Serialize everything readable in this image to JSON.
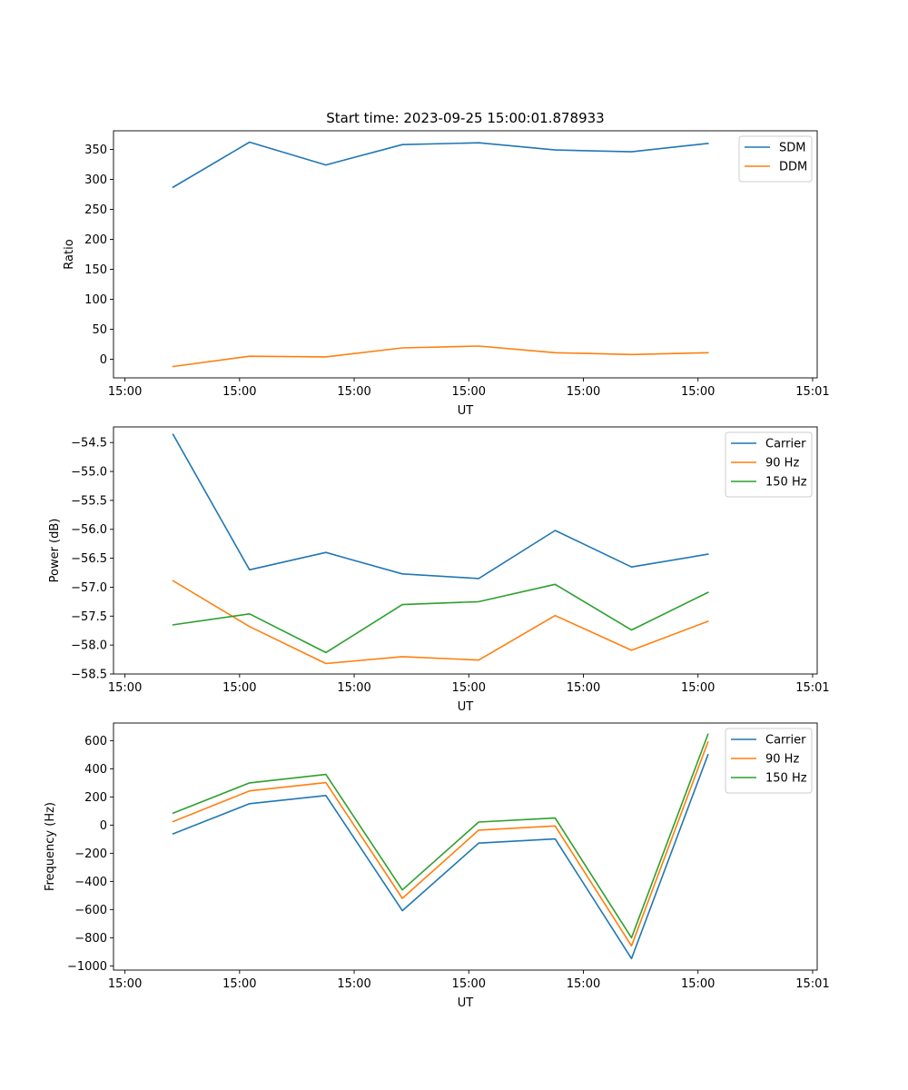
{
  "chart_data": [
    {
      "type": "line",
      "title": "Start time: 2023-09-25 15:00:01.878933",
      "xlabel": "UT",
      "ylabel": "Ratio",
      "x": [
        1,
        2,
        3,
        4,
        5,
        6,
        7,
        8
      ],
      "xlim": [
        0.22,
        9.43
      ],
      "xticks": [
        0.37,
        1.87,
        3.37,
        4.87,
        6.37,
        7.87,
        9.37
      ],
      "xtick_labels": [
        "15:00",
        "15:00",
        "15:00",
        "15:00",
        "15:00",
        "15:00",
        "15:01"
      ],
      "ylim": [
        -31,
        381
      ],
      "yticks": [
        0,
        50,
        100,
        150,
        200,
        250,
        300,
        350
      ],
      "ytick_labels": [
        "0",
        "50",
        "100",
        "150",
        "200",
        "250",
        "300",
        "350"
      ],
      "legend": "top-right",
      "series": [
        {
          "name": "SDM",
          "color": "#1f77b4",
          "values": [
            287,
            362,
            324,
            358,
            361,
            349,
            346,
            360
          ]
        },
        {
          "name": "DDM",
          "color": "#ff7f0e",
          "values": [
            -12,
            5,
            4,
            19,
            22,
            11,
            8,
            11
          ]
        }
      ]
    },
    {
      "type": "line",
      "title": "",
      "xlabel": "UT",
      "ylabel": "Power (dB)",
      "x": [
        1,
        2,
        3,
        4,
        5,
        6,
        7,
        8
      ],
      "xlim": [
        0.22,
        9.43
      ],
      "xticks": [
        0.37,
        1.87,
        3.37,
        4.87,
        6.37,
        7.87,
        9.37
      ],
      "xtick_labels": [
        "15:00",
        "15:00",
        "15:00",
        "15:00",
        "15:00",
        "15:00",
        "15:01"
      ],
      "ylim": [
        -58.5,
        -54.23
      ],
      "yticks": [
        -58.5,
        -58.0,
        -57.5,
        -57.0,
        -56.5,
        -56.0,
        -55.5,
        -55.0,
        -54.5
      ],
      "ytick_labels": [
        "−58.5",
        "−58.0",
        "−57.5",
        "−57.0",
        "−56.5",
        "−56.0",
        "−55.5",
        "−55.0",
        "−54.5"
      ],
      "legend": "top-right",
      "series": [
        {
          "name": "Carrier",
          "color": "#1f77b4",
          "values": [
            -54.36,
            -56.7,
            -56.4,
            -56.77,
            -56.85,
            -56.02,
            -56.65,
            -56.43
          ]
        },
        {
          "name": "90 Hz",
          "color": "#ff7f0e",
          "values": [
            -56.89,
            -57.68,
            -58.32,
            -58.2,
            -58.26,
            -57.49,
            -58.09,
            -57.59
          ]
        },
        {
          "name": "150 Hz",
          "color": "#2ca02c",
          "values": [
            -57.65,
            -57.46,
            -58.13,
            -57.3,
            -57.25,
            -56.95,
            -57.74,
            -57.09
          ]
        }
      ]
    },
    {
      "type": "line",
      "title": "",
      "xlabel": "UT",
      "ylabel": "Frequency (Hz)",
      "x": [
        1,
        2,
        3,
        4,
        5,
        6,
        7,
        8
      ],
      "xlim": [
        0.22,
        9.43
      ],
      "xticks": [
        0.37,
        1.87,
        3.37,
        4.87,
        6.37,
        7.87,
        9.37
      ],
      "xtick_labels": [
        "15:00",
        "15:00",
        "15:00",
        "15:00",
        "15:00",
        "15:00",
        "15:01"
      ],
      "ylim": [
        -1030,
        725
      ],
      "yticks": [
        -1000,
        -800,
        -600,
        -400,
        -200,
        0,
        200,
        400,
        600
      ],
      "ytick_labels": [
        "−1000",
        "−800",
        "−600",
        "−400",
        "−200",
        "0",
        "200",
        "400",
        "600"
      ],
      "legend": "top-right",
      "series": [
        {
          "name": "Carrier",
          "color": "#1f77b4",
          "values": [
            -62,
            152,
            210,
            -608,
            -128,
            -98,
            -948,
            500
          ]
        },
        {
          "name": "90 Hz",
          "color": "#ff7f0e",
          "values": [
            25,
            243,
            302,
            -520,
            -36,
            -6,
            -858,
            590
          ]
        },
        {
          "name": "150 Hz",
          "color": "#2ca02c",
          "values": [
            85,
            300,
            360,
            -460,
            22,
            50,
            -800,
            645
          ]
        }
      ]
    }
  ]
}
